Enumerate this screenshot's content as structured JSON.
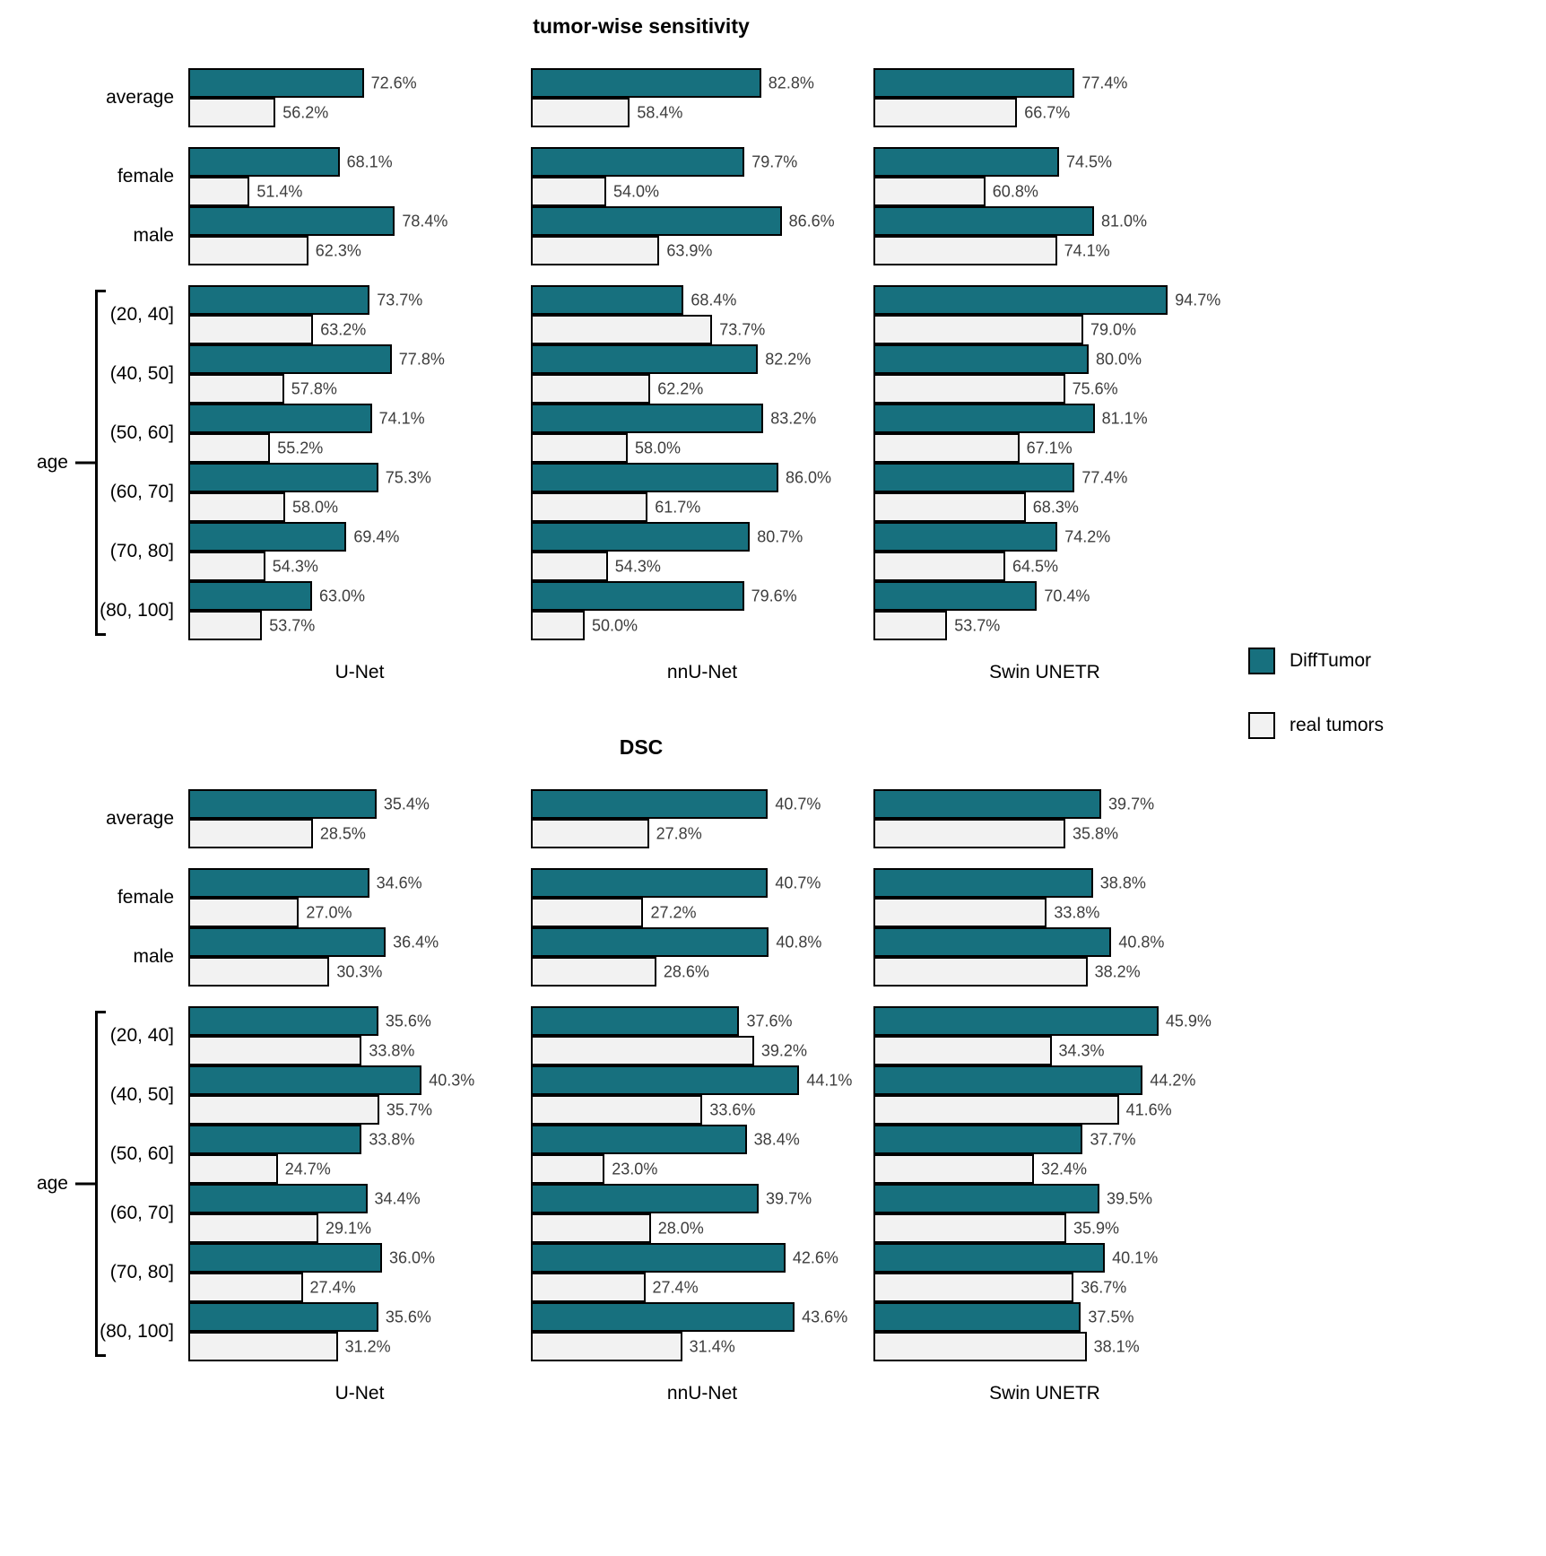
{
  "figure": {
    "legend": [
      {
        "label": "DiffTumor",
        "color": "#17707E"
      },
      {
        "label": "real tumors",
        "color": "#F2F2F2"
      }
    ]
  },
  "chart_data": [
    {
      "type": "bar",
      "orientation": "horizontal",
      "title": "tumor-wise sensitivity",
      "value_unit": "%",
      "xlim": [
        40,
        100
      ],
      "grid": false,
      "legend_position": "right",
      "categories": [
        "average",
        "female",
        "male",
        "(20, 40]",
        "(40, 50]",
        "(50, 60]",
        "(60, 70]",
        "(70, 80]",
        "(80, 100]"
      ],
      "category_groups": [
        [
          0
        ],
        [
          1,
          2
        ],
        [
          3,
          4,
          5,
          6,
          7,
          8
        ]
      ],
      "group_labels": [
        "",
        "",
        "age"
      ],
      "panels": [
        {
          "name": "U-Net",
          "series": [
            {
              "name": "DiffTumor",
              "values": [
                72.6,
                68.1,
                78.4,
                73.7,
                77.8,
                74.1,
                75.3,
                69.4,
                63.0
              ]
            },
            {
              "name": "real tumors",
              "values": [
                56.2,
                51.4,
                62.3,
                63.2,
                57.8,
                55.2,
                58.0,
                54.3,
                53.7
              ]
            }
          ]
        },
        {
          "name": "nnU-Net",
          "series": [
            {
              "name": "DiffTumor",
              "values": [
                82.8,
                79.7,
                86.6,
                68.4,
                82.2,
                83.2,
                86.0,
                80.7,
                79.6
              ]
            },
            {
              "name": "real tumors",
              "values": [
                58.4,
                54.0,
                63.9,
                73.7,
                62.2,
                58.0,
                61.7,
                54.3,
                50.0
              ]
            }
          ]
        },
        {
          "name": "Swin UNETR",
          "series": [
            {
              "name": "DiffTumor",
              "values": [
                77.4,
                74.5,
                81.0,
                94.7,
                80.0,
                81.1,
                77.4,
                74.2,
                70.4
              ]
            },
            {
              "name": "real tumors",
              "values": [
                66.7,
                60.8,
                74.1,
                79.0,
                75.6,
                67.1,
                68.3,
                64.5,
                53.7
              ]
            }
          ]
        }
      ]
    },
    {
      "type": "bar",
      "orientation": "horizontal",
      "title": "DSC",
      "value_unit": "%",
      "xlim": [
        15,
        50
      ],
      "grid": false,
      "legend_position": "right",
      "categories": [
        "average",
        "female",
        "male",
        "(20, 40]",
        "(40, 50]",
        "(50, 60]",
        "(60, 70]",
        "(70, 80]",
        "(80, 100]"
      ],
      "category_groups": [
        [
          0
        ],
        [
          1,
          2
        ],
        [
          3,
          4,
          5,
          6,
          7,
          8
        ]
      ],
      "group_labels": [
        "",
        "",
        "age"
      ],
      "panels": [
        {
          "name": "U-Net",
          "series": [
            {
              "name": "DiffTumor",
              "values": [
                35.4,
                34.6,
                36.4,
                35.6,
                40.3,
                33.8,
                34.4,
                36.0,
                35.6
              ]
            },
            {
              "name": "real tumors",
              "values": [
                28.5,
                27.0,
                30.3,
                33.8,
                35.7,
                24.7,
                29.1,
                27.4,
                31.2
              ]
            }
          ]
        },
        {
          "name": "nnU-Net",
          "series": [
            {
              "name": "DiffTumor",
              "values": [
                40.7,
                40.7,
                40.8,
                37.6,
                44.1,
                38.4,
                39.7,
                42.6,
                43.6
              ]
            },
            {
              "name": "real tumors",
              "values": [
                27.8,
                27.2,
                28.6,
                39.2,
                33.6,
                23.0,
                28.0,
                27.4,
                31.4
              ]
            }
          ]
        },
        {
          "name": "Swin UNETR",
          "series": [
            {
              "name": "DiffTumor",
              "values": [
                39.7,
                38.8,
                40.8,
                45.9,
                44.2,
                37.7,
                39.5,
                40.1,
                37.5
              ]
            },
            {
              "name": "real tumors",
              "values": [
                35.8,
                33.8,
                38.2,
                34.3,
                41.6,
                32.4,
                35.9,
                36.7,
                38.1
              ]
            }
          ]
        }
      ]
    }
  ]
}
